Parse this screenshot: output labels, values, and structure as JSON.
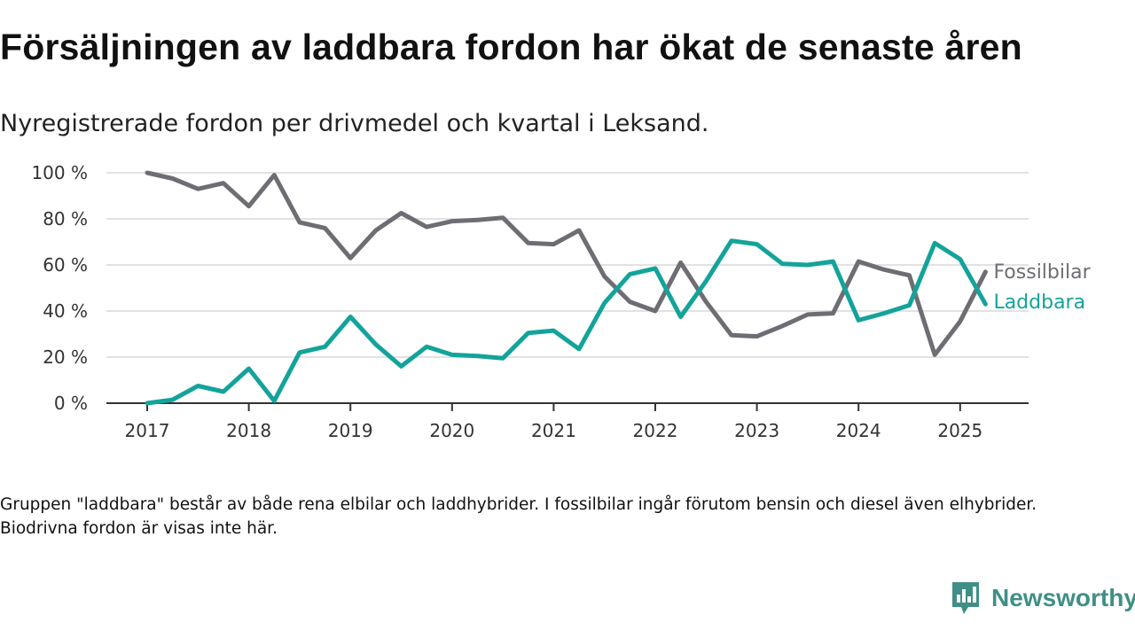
{
  "title": "Försäljningen av laddbara fordon har ökat de senaste åren",
  "subtitle": "Nyregistrerade fordon per drivmedel och kvartal i Leksand.",
  "note": "Gruppen \"laddbara\" består av både rena elbilar och laddhybrider. I fossilbilar ingår förutom bensin och diesel även elhybrider. Biodrivna fordon är visas inte här.",
  "brand": {
    "name": "Newsworthy",
    "icon": "newsworthy-logo-icon",
    "color": "#3f8f86"
  },
  "chart_data": {
    "type": "line",
    "title": "",
    "xlabel": "",
    "ylabel": "",
    "ylim": [
      0,
      100
    ],
    "xlim": [
      2017,
      2025.5
    ],
    "grid": true,
    "legend": "end-of-line labels",
    "y_ticks": [
      {
        "value": 0,
        "label": "0 %"
      },
      {
        "value": 20,
        "label": "20 %"
      },
      {
        "value": 40,
        "label": "40 %"
      },
      {
        "value": 60,
        "label": "60 %"
      },
      {
        "value": 80,
        "label": "80 %"
      },
      {
        "value": 100,
        "label": "100 %"
      }
    ],
    "x_ticks": [
      {
        "value": 2017,
        "label": "2017"
      },
      {
        "value": 2018,
        "label": "2018"
      },
      {
        "value": 2019,
        "label": "2019"
      },
      {
        "value": 2020,
        "label": "2020"
      },
      {
        "value": 2021,
        "label": "2021"
      },
      {
        "value": 2022,
        "label": "2022"
      },
      {
        "value": 2023,
        "label": "2023"
      },
      {
        "value": 2024,
        "label": "2024"
      },
      {
        "value": 2025,
        "label": "2025"
      }
    ],
    "x": [
      2017.0,
      2017.25,
      2017.5,
      2017.75,
      2018.0,
      2018.25,
      2018.5,
      2018.75,
      2019.0,
      2019.25,
      2019.5,
      2019.75,
      2020.0,
      2020.25,
      2020.5,
      2020.75,
      2021.0,
      2021.25,
      2021.5,
      2021.75,
      2022.0,
      2022.25,
      2022.5,
      2022.75,
      2023.0,
      2023.25,
      2023.5,
      2023.75,
      2024.0,
      2024.25,
      2024.5,
      2024.75,
      2025.0,
      2025.25
    ],
    "series": [
      {
        "name": "Fossilbilar",
        "color": "#6e6d73",
        "values": [
          100,
          97.5,
          93,
          95.5,
          85.5,
          99,
          78.5,
          76,
          63,
          75,
          82.5,
          76.5,
          79,
          79.5,
          80.5,
          69.5,
          69,
          75,
          55,
          44,
          40,
          61,
          44,
          29.5,
          29,
          33.5,
          38.5,
          39,
          61.5,
          58,
          55.5,
          21,
          35.5,
          57
        ]
      },
      {
        "name": "Laddbara",
        "color": "#13a39a",
        "values": [
          0,
          1.5,
          7.5,
          5,
          15,
          1,
          22,
          24.5,
          37.5,
          25.5,
          16,
          24.5,
          21,
          20.5,
          19.5,
          30.5,
          31.5,
          23.5,
          43.5,
          56,
          58.5,
          37.5,
          53,
          70.5,
          69,
          60.5,
          60,
          61.5,
          36,
          39,
          42.5,
          69.5,
          62.5,
          43
        ]
      }
    ]
  }
}
